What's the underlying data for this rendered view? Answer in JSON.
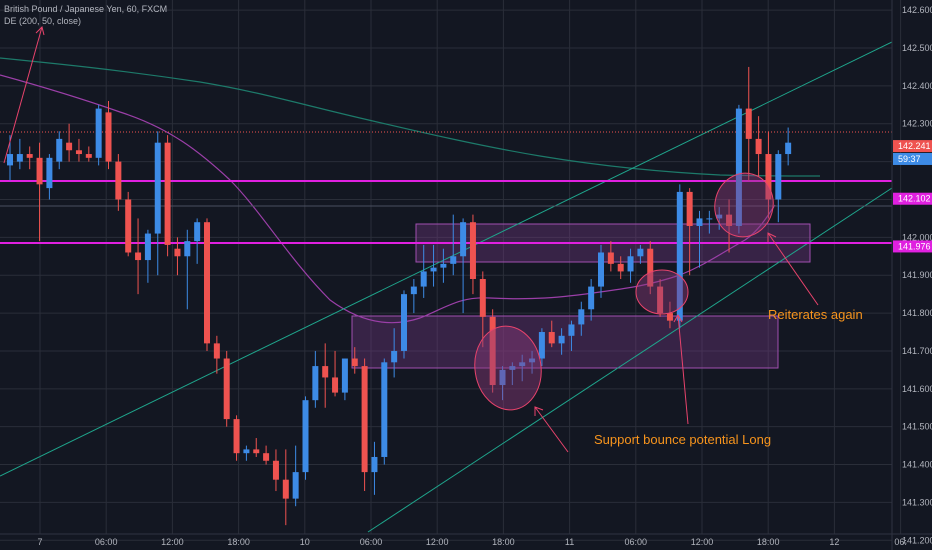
{
  "header": {
    "symbol_line": "British Pound / Japanese Yen, 60, FXCM",
    "indicator_line": "DE (200, 50, close)"
  },
  "colors": {
    "background": "#131722",
    "grid": "#2a2e39",
    "up": "#3d8be6",
    "down": "#ef5350",
    "magenta_line": "#e020e0",
    "channel": "#1fa58c",
    "sma_slow": "#1d7a6a",
    "sma_fast": "#9b3fa8",
    "annotation_text": "#f7941d",
    "arrow": "#e8436c",
    "zone_fill": "#7a3a8a"
  },
  "chart_data": {
    "type": "candlestick",
    "symbol": "British Pound / Japanese Yen, 60, FXCM",
    "ylim": [
      141.14,
      142.64
    ],
    "y_ticks": [
      "142.600",
      "142.500",
      "142.400",
      "142.300",
      "142.200",
      "142.100",
      "142.000",
      "141.900",
      "141.800",
      "141.700",
      "141.600",
      "141.500",
      "141.400",
      "141.300",
      "141.200"
    ],
    "x_ticks": [
      "7",
      "06:00",
      "12:00",
      "18:00",
      "10",
      "06:00",
      "12:00",
      "18:00",
      "11",
      "06:00",
      "12:00",
      "18:00",
      "12",
      "06:"
    ],
    "price_labels": [
      {
        "text": "142.241",
        "value": 142.241,
        "color": "#ef5350"
      },
      {
        "text": "59:37",
        "value": 142.207,
        "color": "#3d8be6"
      },
      {
        "text": "142.102",
        "value": 142.102,
        "color": "#e020e0"
      },
      {
        "text": "141.976",
        "value": 141.976,
        "color": "#e020e0"
      }
    ],
    "candles": [
      {
        "o": 142.19,
        "h": 142.27,
        "l": 142.15,
        "c": 142.22
      },
      {
        "o": 142.2,
        "h": 142.26,
        "l": 142.18,
        "c": 142.22
      },
      {
        "o": 142.22,
        "h": 142.24,
        "l": 142.18,
        "c": 142.21
      },
      {
        "o": 142.21,
        "h": 142.25,
        "l": 141.99,
        "c": 142.14
      },
      {
        "o": 142.13,
        "h": 142.22,
        "l": 142.1,
        "c": 142.21
      },
      {
        "o": 142.2,
        "h": 142.28,
        "l": 142.18,
        "c": 142.26
      },
      {
        "o": 142.25,
        "h": 142.3,
        "l": 142.2,
        "c": 142.23
      },
      {
        "o": 142.23,
        "h": 142.26,
        "l": 142.2,
        "c": 142.22
      },
      {
        "o": 142.22,
        "h": 142.24,
        "l": 142.2,
        "c": 142.21
      },
      {
        "o": 142.21,
        "h": 142.35,
        "l": 142.19,
        "c": 142.34
      },
      {
        "o": 142.33,
        "h": 142.36,
        "l": 142.18,
        "c": 142.2
      },
      {
        "o": 142.2,
        "h": 142.22,
        "l": 142.07,
        "c": 142.1
      },
      {
        "o": 142.1,
        "h": 142.12,
        "l": 141.95,
        "c": 141.96
      },
      {
        "o": 141.96,
        "h": 142.05,
        "l": 141.85,
        "c": 141.94
      },
      {
        "o": 141.94,
        "h": 142.02,
        "l": 141.88,
        "c": 142.01
      },
      {
        "o": 142.01,
        "h": 142.28,
        "l": 141.9,
        "c": 142.25
      },
      {
        "o": 142.25,
        "h": 142.27,
        "l": 141.95,
        "c": 141.98
      },
      {
        "o": 141.97,
        "h": 142.0,
        "l": 141.9,
        "c": 141.95
      },
      {
        "o": 141.95,
        "h": 142.02,
        "l": 141.81,
        "c": 141.99
      },
      {
        "o": 141.99,
        "h": 142.05,
        "l": 141.93,
        "c": 142.04
      },
      {
        "o": 142.04,
        "h": 142.05,
        "l": 141.7,
        "c": 141.72
      },
      {
        "o": 141.72,
        "h": 141.74,
        "l": 141.64,
        "c": 141.68
      },
      {
        "o": 141.68,
        "h": 141.7,
        "l": 141.5,
        "c": 141.52
      },
      {
        "o": 141.52,
        "h": 141.53,
        "l": 141.41,
        "c": 141.43
      },
      {
        "o": 141.43,
        "h": 141.45,
        "l": 141.41,
        "c": 141.44
      },
      {
        "o": 141.44,
        "h": 141.47,
        "l": 141.42,
        "c": 141.43
      },
      {
        "o": 141.43,
        "h": 141.45,
        "l": 141.4,
        "c": 141.41
      },
      {
        "o": 141.41,
        "h": 141.44,
        "l": 141.33,
        "c": 141.36
      },
      {
        "o": 141.36,
        "h": 141.44,
        "l": 141.24,
        "c": 141.31
      },
      {
        "o": 141.31,
        "h": 141.45,
        "l": 141.29,
        "c": 141.38
      },
      {
        "o": 141.38,
        "h": 141.58,
        "l": 141.36,
        "c": 141.57
      },
      {
        "o": 141.57,
        "h": 141.7,
        "l": 141.55,
        "c": 141.66
      },
      {
        "o": 141.66,
        "h": 141.72,
        "l": 141.55,
        "c": 141.63
      },
      {
        "o": 141.63,
        "h": 141.7,
        "l": 141.58,
        "c": 141.59
      },
      {
        "o": 141.59,
        "h": 141.68,
        "l": 141.57,
        "c": 141.68
      },
      {
        "o": 141.68,
        "h": 141.71,
        "l": 141.64,
        "c": 141.66
      },
      {
        "o": 141.66,
        "h": 141.68,
        "l": 141.33,
        "c": 141.38
      },
      {
        "o": 141.38,
        "h": 141.46,
        "l": 141.32,
        "c": 141.42
      },
      {
        "o": 141.42,
        "h": 141.68,
        "l": 141.4,
        "c": 141.67
      },
      {
        "o": 141.67,
        "h": 141.76,
        "l": 141.63,
        "c": 141.7
      },
      {
        "o": 141.7,
        "h": 141.86,
        "l": 141.68,
        "c": 141.85
      },
      {
        "o": 141.85,
        "h": 141.89,
        "l": 141.8,
        "c": 141.87
      },
      {
        "o": 141.87,
        "h": 141.98,
        "l": 141.84,
        "c": 141.91
      },
      {
        "o": 141.91,
        "h": 141.98,
        "l": 141.87,
        "c": 141.92
      },
      {
        "o": 141.92,
        "h": 141.97,
        "l": 141.88,
        "c": 141.93
      },
      {
        "o": 141.93,
        "h": 142.06,
        "l": 141.9,
        "c": 141.95
      },
      {
        "o": 141.95,
        "h": 142.05,
        "l": 141.8,
        "c": 142.04
      },
      {
        "o": 142.04,
        "h": 142.06,
        "l": 141.85,
        "c": 141.89
      },
      {
        "o": 141.89,
        "h": 141.91,
        "l": 141.71,
        "c": 141.79
      },
      {
        "o": 141.79,
        "h": 141.81,
        "l": 141.59,
        "c": 141.61
      },
      {
        "o": 141.61,
        "h": 141.66,
        "l": 141.57,
        "c": 141.65
      },
      {
        "o": 141.65,
        "h": 141.67,
        "l": 141.61,
        "c": 141.66
      },
      {
        "o": 141.66,
        "h": 141.69,
        "l": 141.62,
        "c": 141.67
      },
      {
        "o": 141.67,
        "h": 141.7,
        "l": 141.64,
        "c": 141.68
      },
      {
        "o": 141.68,
        "h": 141.76,
        "l": 141.66,
        "c": 141.75
      },
      {
        "o": 141.75,
        "h": 141.78,
        "l": 141.71,
        "c": 141.72
      },
      {
        "o": 141.72,
        "h": 141.76,
        "l": 141.69,
        "c": 141.74
      },
      {
        "o": 141.74,
        "h": 141.78,
        "l": 141.7,
        "c": 141.77
      },
      {
        "o": 141.77,
        "h": 141.83,
        "l": 141.74,
        "c": 141.81
      },
      {
        "o": 141.81,
        "h": 141.89,
        "l": 141.78,
        "c": 141.87
      },
      {
        "o": 141.87,
        "h": 141.98,
        "l": 141.84,
        "c": 141.96
      },
      {
        "o": 141.96,
        "h": 141.99,
        "l": 141.91,
        "c": 141.93
      },
      {
        "o": 141.93,
        "h": 141.95,
        "l": 141.89,
        "c": 141.91
      },
      {
        "o": 141.91,
        "h": 141.97,
        "l": 141.88,
        "c": 141.95
      },
      {
        "o": 141.95,
        "h": 141.98,
        "l": 141.93,
        "c": 141.97
      },
      {
        "o": 141.97,
        "h": 141.99,
        "l": 141.85,
        "c": 141.87
      },
      {
        "o": 141.87,
        "h": 141.89,
        "l": 141.79,
        "c": 141.8
      },
      {
        "o": 141.8,
        "h": 141.83,
        "l": 141.76,
        "c": 141.78
      },
      {
        "o": 141.78,
        "h": 142.14,
        "l": 141.76,
        "c": 142.12
      },
      {
        "o": 142.12,
        "h": 142.13,
        "l": 141.9,
        "c": 142.03
      },
      {
        "o": 142.03,
        "h": 142.07,
        "l": 141.92,
        "c": 142.05
      },
      {
        "o": 142.05,
        "h": 142.07,
        "l": 142.01,
        "c": 142.05
      },
      {
        "o": 142.05,
        "h": 142.08,
        "l": 142.02,
        "c": 142.06
      },
      {
        "o": 142.06,
        "h": 142.1,
        "l": 141.96,
        "c": 142.03
      },
      {
        "o": 142.03,
        "h": 142.35,
        "l": 142.01,
        "c": 142.34
      },
      {
        "o": 142.34,
        "h": 142.45,
        "l": 142.15,
        "c": 142.26
      },
      {
        "o": 142.26,
        "h": 142.32,
        "l": 142.16,
        "c": 142.22
      },
      {
        "o": 142.22,
        "h": 142.28,
        "l": 142.05,
        "c": 142.1
      },
      {
        "o": 142.1,
        "h": 142.23,
        "l": 142.04,
        "c": 142.22
      },
      {
        "o": 142.22,
        "h": 142.29,
        "l": 142.19,
        "c": 142.25
      }
    ],
    "annotations": [
      "Reiterates again",
      "Support bounce potential Long"
    ]
  }
}
